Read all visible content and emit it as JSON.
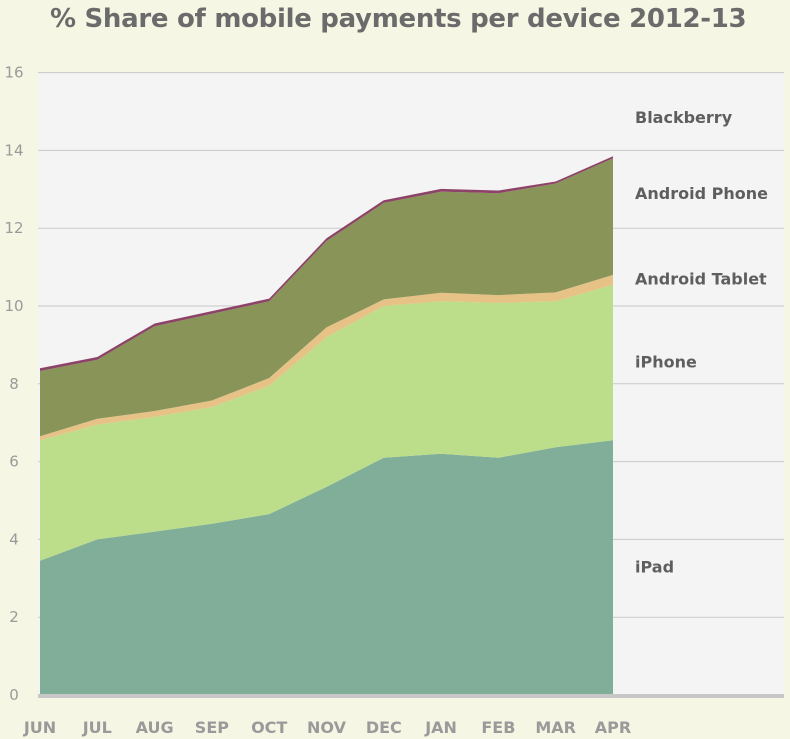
{
  "chart_data": {
    "type": "area",
    "title": "% Share of mobile payments per device 2012-13",
    "categories": [
      "JUN",
      "JUL",
      "AUG",
      "SEP",
      "OCT",
      "NOV",
      "DEC",
      "JAN",
      "FEB",
      "MAR",
      "APR"
    ],
    "ylim": [
      0,
      16
    ],
    "yticks": [
      "0",
      "2",
      "4",
      "6",
      "8",
      "10",
      "12",
      "14",
      "16"
    ],
    "stacked": true,
    "grid": true,
    "legend": "right, labels beside series",
    "series": [
      {
        "name": "iPad",
        "color": "#80ae98",
        "values": [
          3.45,
          4.0,
          4.2,
          4.4,
          4.65,
          5.35,
          6.1,
          6.2,
          6.1,
          6.37,
          6.55
        ]
      },
      {
        "name": "iPhone",
        "color": "#bcdd89",
        "values": [
          3.1,
          2.95,
          2.95,
          3.0,
          3.3,
          3.85,
          3.9,
          3.92,
          3.98,
          3.75,
          4.0
        ]
      },
      {
        "name": "Android Tablet",
        "color": "#e7c287",
        "values": [
          0.1,
          0.15,
          0.15,
          0.17,
          0.2,
          0.25,
          0.17,
          0.22,
          0.2,
          0.23,
          0.25
        ]
      },
      {
        "name": "Android Phone",
        "color": "#889458",
        "values": [
          1.68,
          1.52,
          2.18,
          2.23,
          1.97,
          2.22,
          2.48,
          2.6,
          2.62,
          2.8,
          3.0
        ]
      },
      {
        "name": "Blackberry",
        "color": "#8c4367",
        "values": [
          0.07,
          0.07,
          0.07,
          0.07,
          0.07,
          0.07,
          0.07,
          0.07,
          0.07,
          0.05,
          0.05
        ]
      }
    ]
  }
}
